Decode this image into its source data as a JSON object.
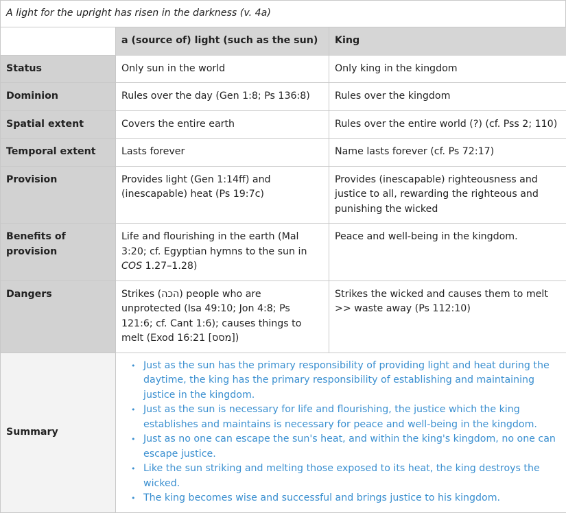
{
  "title": "A light for the upright has risen in the darkness (v. 4a)",
  "columns": [
    "",
    "a (source of) light (such as the sun)",
    "King"
  ],
  "rows": [
    {
      "label": "Status",
      "light": "Only sun in the world",
      "king": "Only king in the kingdom"
    },
    {
      "label": "Dominion",
      "light": "Rules over the day (Gen 1:8; Ps 136:8)",
      "king": "Rules over the kingdom"
    },
    {
      "label": "Spatial extent",
      "light": "Covers the entire earth",
      "king": "Rules over the entire world (?) (cf. Pss 2; 110)"
    },
    {
      "label": "Temporal extent",
      "light": "Lasts forever",
      "king": "Name lasts forever (cf. Ps 72:17)"
    },
    {
      "label": "Provision",
      "light": "Provides light (Gen 1:14ff) and (inescapable) heat (Ps 19:7c)",
      "king": "Provides (inescapable) righteousness and justice to all, rewarding the righteous and punishing the wicked"
    },
    {
      "label": "Benefits of provision",
      "light_pre": "Life and flourishing in the earth (Mal 3:20; cf. Egyptian hymns to the sun in ",
      "light_italic": "COS",
      "light_post": " 1.27–1.28)",
      "king": "Peace and well-being in the kingdom."
    },
    {
      "label": "Dangers",
      "light": "Strikes (הכה) people who are unprotected (Isa 49:10; Jon 4:8; Ps 121:6; cf. Cant 1:6); causes things to melt (Exod 16:21 [מסס])",
      "king": "Strikes the wicked and causes them to melt >> waste away (Ps 112:10)"
    }
  ],
  "summary": {
    "label": "Summary",
    "items": [
      "Just as the sun has the primary responsibility of providing light and heat during the daytime, the king has the primary responsibility of establishing and maintaining justice in the kingdom.",
      "Just as the sun is necessary for life and flourishing, the justice which the king establishes and maintains is necessary for peace and well-being in the kingdom.",
      "Just as no one can escape the sun's heat, and within the king's kingdom, no one can escape justice.",
      "Like the sun striking and melting those exposed to its heat, the king destroys the wicked.",
      "The king becomes wise and successful and brings justice to his kingdom."
    ]
  },
  "colors": {
    "summary_text": "#3a8fd0",
    "label_bg": "#d2d2d2",
    "summary_label_bg": "#f3f3f3"
  }
}
